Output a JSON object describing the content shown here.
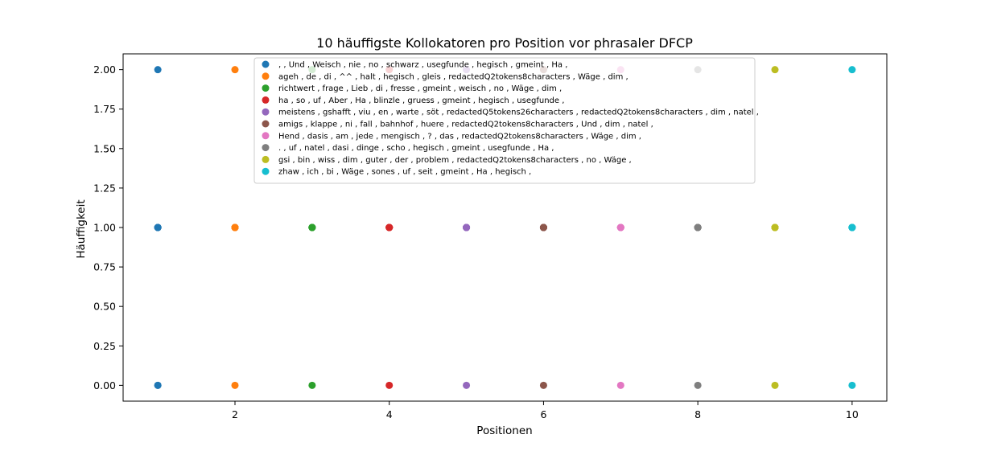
{
  "chart_data": {
    "type": "scatter",
    "title": "10 häuffigste Kollokatoren pro Position vor phrasaler DFCP",
    "xlabel": "Positionen",
    "ylabel": "Häuffigkeit",
    "xlim": [
      0.55,
      10.45
    ],
    "ylim": [
      -0.1,
      2.1
    ],
    "xticks": [
      2,
      4,
      6,
      8,
      10
    ],
    "yticks": [
      "0.00",
      "0.25",
      "0.50",
      "0.75",
      "1.00",
      "1.25",
      "1.50",
      "1.75",
      "2.00"
    ],
    "legend_position": "upper center",
    "grid": false,
    "series": [
      {
        "name": ", , Und , Weisch , nie , no , schwarz , usegfunde , hegisch , gmeint , Ha ,",
        "color": "#1f77b4",
        "x": [
          1,
          1,
          1,
          1,
          1,
          1,
          1,
          1,
          1,
          1
        ],
        "y": [
          0,
          2,
          1,
          1,
          1,
          1,
          1,
          1,
          1,
          0
        ]
      },
      {
        "name": "ageh , de , di , ^^ , halt , hegisch , gleis , redactedQ2tokens8characters , Wäge , dim ,",
        "color": "#ff7f0e",
        "x": [
          2,
          2,
          2,
          2,
          2,
          2,
          2,
          2,
          2,
          2
        ],
        "y": [
          2,
          1,
          1,
          1,
          1,
          1,
          1,
          1,
          1,
          0
        ]
      },
      {
        "name": "richtwert , frage , Lieb , di , fresse , gmeint , weisch , no , Wäge , dim ,",
        "color": "#2ca02c",
        "x": [
          3,
          3,
          3,
          3,
          3,
          3,
          3,
          3,
          3,
          3
        ],
        "y": [
          2,
          1,
          1,
          1,
          1,
          1,
          1,
          1,
          1,
          0
        ]
      },
      {
        "name": "ha , so , uf , Aber , Ha , blinzle , gruess , gmeint , hegisch , usegfunde ,",
        "color": "#d62728",
        "x": [
          4,
          4,
          4,
          4,
          4,
          4,
          4,
          4,
          4,
          4
        ],
        "y": [
          2,
          1,
          1,
          1,
          1,
          1,
          1,
          1,
          1,
          0
        ]
      },
      {
        "name": "meistens , gshafft , viu , en , warte , söt , redactedQ5tokens26characters , redactedQ2tokens8characters , dim , natel ,",
        "color": "#9467bd",
        "x": [
          5,
          5,
          5,
          5,
          5,
          5,
          5,
          5,
          5,
          5
        ],
        "y": [
          2,
          1,
          1,
          1,
          1,
          1,
          1,
          1,
          1,
          0
        ]
      },
      {
        "name": "amigs , klappe , ni , fall , bahnhof , huere , redactedQ2tokens8characters , Und , dim , natel ,",
        "color": "#8c564b",
        "x": [
          6,
          6,
          6,
          6,
          6,
          6,
          6,
          6,
          6,
          6
        ],
        "y": [
          2,
          1,
          1,
          1,
          1,
          1,
          1,
          1,
          1,
          0
        ]
      },
      {
        "name": "Hend , dasis , am , jede , mengisch , ? , das , redactedQ2tokens8characters , Wäge , dim ,",
        "color": "#e377c2",
        "x": [
          7,
          7,
          7,
          7,
          7,
          7,
          7,
          7,
          7,
          7
        ],
        "y": [
          2,
          1,
          1,
          1,
          1,
          1,
          1,
          1,
          1,
          0
        ]
      },
      {
        "name": ". , uf , natel , dasi , dinge , scho , hegisch , gmeint , usegfunde , Ha ,",
        "color": "#7f7f7f",
        "x": [
          8,
          8,
          8,
          8,
          8,
          8,
          8,
          8,
          8,
          8
        ],
        "y": [
          2,
          1,
          1,
          1,
          1,
          1,
          1,
          1,
          1,
          0
        ]
      },
      {
        "name": "gsi , bin , wiss , dim , guter , der , problem , redactedQ2tokens8characters , no , Wäge ,",
        "color": "#bcbd22",
        "x": [
          9,
          9,
          9,
          9,
          9,
          9,
          9,
          9,
          9,
          9
        ],
        "y": [
          2,
          1,
          1,
          1,
          1,
          1,
          1,
          1,
          1,
          0
        ]
      },
      {
        "name": "zhaw , ich , bi , Wäge , sones , uf , seit , gmeint , Ha , hegisch ,",
        "color": "#17becf",
        "x": [
          10,
          10,
          10,
          10,
          10,
          10,
          10,
          10,
          10,
          10
        ],
        "y": [
          2,
          1,
          1,
          1,
          1,
          1,
          1,
          1,
          1,
          0
        ]
      }
    ]
  }
}
